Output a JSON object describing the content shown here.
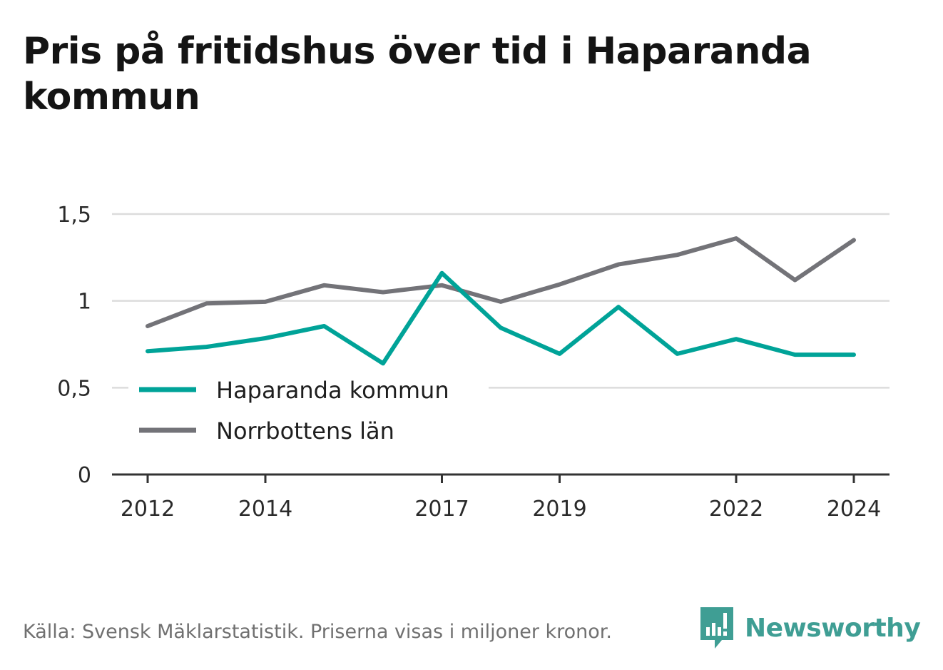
{
  "title": "Pris på fritidshus över tid i Haparanda kommun",
  "footer": "Källa: Svensk Mäklarstatistik. Priserna visas i miljoner kronor.",
  "brand": {
    "name": "Newsworthy",
    "icon": "newsworthy-logo-icon",
    "color": "#3f9e94"
  },
  "chart_data": {
    "type": "line",
    "x": [
      2012,
      2013,
      2014,
      2015,
      2016,
      2017,
      2018,
      2019,
      2020,
      2021,
      2022,
      2023,
      2024
    ],
    "x_tick_labels": [
      "2012",
      "2014",
      "2017",
      "2019",
      "2022",
      "2024"
    ],
    "y_ticks": [
      0,
      0.5,
      1,
      1.5
    ],
    "y_tick_labels": [
      "0",
      "0,5",
      "1",
      "1,5"
    ],
    "ylim": [
      0,
      1.5
    ],
    "grid": true,
    "legend_position": "bottom-left",
    "series": [
      {
        "name": "Haparanda kommun",
        "color": "#00a398",
        "values": [
          0.71,
          0.735,
          0.785,
          0.855,
          0.64,
          1.16,
          0.845,
          0.695,
          0.965,
          0.695,
          0.78,
          0.69,
          0.69
        ]
      },
      {
        "name": "Norrbottens län",
        "color": "#737378",
        "values": [
          0.855,
          0.985,
          0.995,
          1.09,
          1.05,
          1.09,
          0.995,
          1.095,
          1.21,
          1.265,
          1.36,
          1.12,
          1.35
        ]
      }
    ]
  }
}
